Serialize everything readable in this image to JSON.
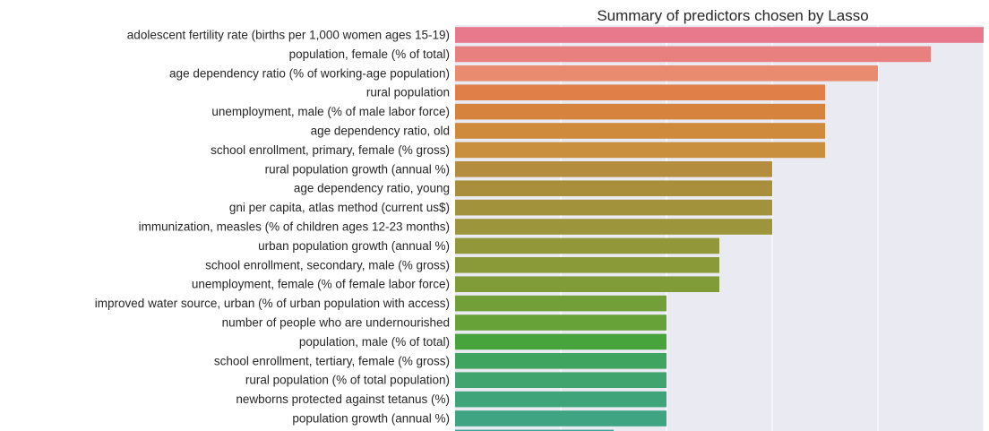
{
  "chart_data": {
    "type": "bar",
    "orientation": "horizontal",
    "title": "Summary of predictors chosen by Lasso",
    "xlabel": "",
    "ylabel": "",
    "xlim": [
      0,
      10
    ],
    "grid": true,
    "categories": [
      "adolescent fertility rate (births per 1,000 women ages 15-19)",
      "population, female (% of total)",
      "age dependency ratio (% of working-age population)",
      "rural population",
      "unemployment, male (% of male labor force)",
      "age dependency ratio, old",
      "school enrollment, primary, female (% gross)",
      "rural population growth (annual %)",
      "age dependency ratio, young",
      "gni per capita, atlas method (current us$)",
      "immunization, measles (% of children ages 12-23 months)",
      "urban population growth (annual %)",
      "school enrollment, secondary, male (% gross)",
      "unemployment, female (% of female labor force)",
      "improved water source, urban (% of urban population with access)",
      "number of people who are undernourished",
      "population, male (% of total)",
      "school enrollment, tertiary, female (% gross)",
      "rural population (% of total population)",
      "newborns protected against tetanus (%)",
      "population growth (annual %)"
    ],
    "values": [
      10,
      9,
      8,
      7,
      7,
      7,
      7,
      6,
      6,
      6,
      6,
      5,
      5,
      5,
      4,
      4,
      4,
      4,
      4,
      4,
      4
    ],
    "colors": [
      "#e8788c",
      "#e8807f",
      "#e88b6e",
      "#e08048",
      "#d6833d",
      "#cf8a3c",
      "#c98f3c",
      "#b48e3e",
      "#a98f3c",
      "#a3923c",
      "#9c953b",
      "#92973a",
      "#8a9a39",
      "#7f9c38",
      "#729f38",
      "#66a238",
      "#47a43d",
      "#3fa460",
      "#3fa46e",
      "#3fa47a",
      "#3ea482"
    ]
  }
}
